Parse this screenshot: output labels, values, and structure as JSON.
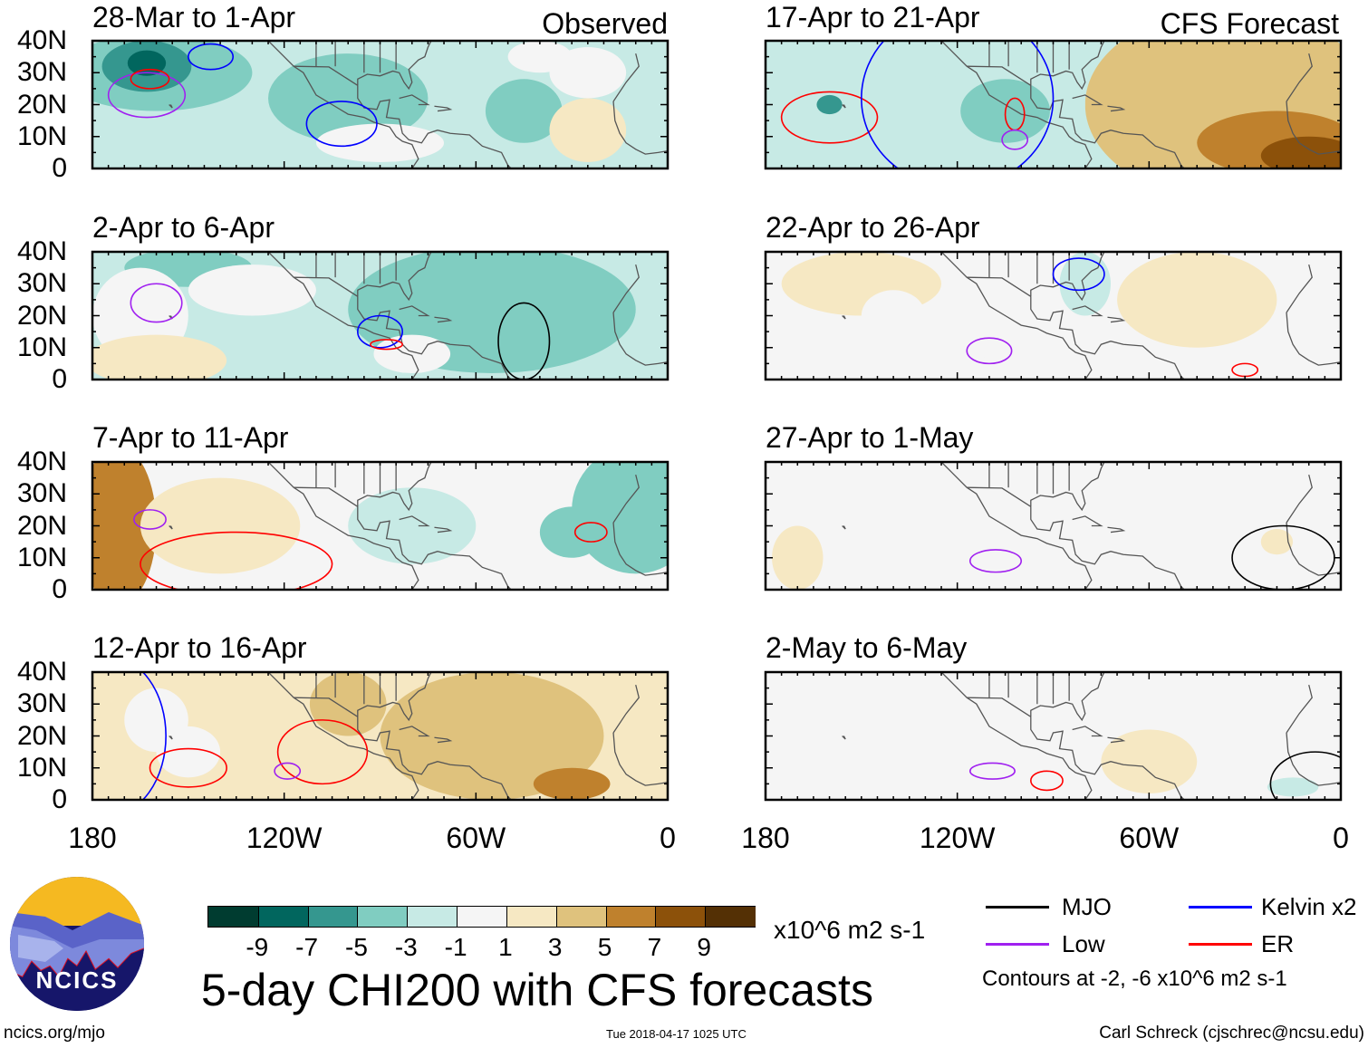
{
  "figure": {
    "title": "5-day CHI200 with CFS forecasts",
    "url": "ncics.org/mjo",
    "timestamp": "Tue 2018-04-17 1025 UTC",
    "author": "Carl Schreck (cjschrec@ncsu.edu)",
    "logo_text": "NCICS",
    "observed_label": "Observed",
    "forecast_label": "CFS Forecast"
  },
  "axes": {
    "y_ticks": [
      "40N",
      "30N",
      "20N",
      "10N",
      "0"
    ],
    "x_ticks": [
      "180",
      "120W",
      "60W",
      "0"
    ]
  },
  "colorbar": {
    "units": "x10^6 m2 s-1",
    "tick_labels": [
      "-9",
      "-7",
      "-5",
      "-3",
      "-1",
      "1",
      "3",
      "5",
      "7",
      "9"
    ],
    "colors": [
      "#003c30",
      "#01665e",
      "#35978f",
      "#80cdc1",
      "#c7eae5",
      "#f5f5f5",
      "#f6e8c3",
      "#dfc27d",
      "#bf812d",
      "#8c510a",
      "#543005"
    ]
  },
  "legend": {
    "items": [
      {
        "label": "MJO",
        "color": "#000000"
      },
      {
        "label": "Kelvin x2",
        "color": "#0000ff"
      },
      {
        "label": "Low",
        "color": "#a020f0"
      },
      {
        "label": "ER",
        "color": "#ff0000"
      }
    ],
    "note": "Contours at -2, -6 x10^6 m2 s-1"
  },
  "chart_data": {
    "type": "map",
    "extent": {
      "lon": [
        -180,
        0
      ],
      "lat": [
        0,
        40
      ]
    },
    "panels": [
      {
        "title": "28-Mar to 1-Apr",
        "background": -2,
        "fills": [
          [
            -160,
            30,
            30,
            12,
            -4
          ],
          [
            -163,
            32,
            14,
            8,
            -7
          ],
          [
            -163,
            33,
            6,
            4,
            -9
          ],
          [
            -100,
            22,
            25,
            14,
            -4
          ],
          [
            -90,
            8,
            20,
            6,
            -1
          ],
          [
            -45,
            18,
            12,
            10,
            -5
          ],
          [
            -25,
            12,
            12,
            10,
            2
          ],
          [
            -25,
            30,
            12,
            8,
            0
          ],
          [
            -40,
            35,
            10,
            5,
            0
          ]
        ],
        "contours": [
          [
            -163,
            23,
            12,
            7,
            "Low"
          ],
          [
            -162,
            28,
            6,
            3,
            "ER"
          ],
          [
            -143,
            35,
            7,
            4,
            "Kelvin x2"
          ],
          [
            -102,
            14,
            11,
            7,
            "Kelvin x2"
          ]
        ]
      },
      {
        "title": "17-Apr to 21-Apr",
        "background": -2,
        "fills": [
          [
            -35,
            20,
            45,
            30,
            3
          ],
          [
            -20,
            8,
            25,
            10,
            6
          ],
          [
            -10,
            4,
            15,
            6,
            8
          ],
          [
            -105,
            20,
            25,
            18,
            -3
          ],
          [
            -105,
            18,
            14,
            10,
            -5
          ],
          [
            -155,
            20,
            12,
            8,
            -3
          ],
          [
            -160,
            20,
            4,
            3,
            -6
          ]
        ],
        "contours": [
          [
            -160,
            16,
            15,
            8,
            "ER"
          ],
          [
            -102,
            17,
            3,
            5,
            "ER"
          ],
          [
            -102,
            9,
            4,
            3,
            "Low"
          ],
          [
            -120,
            22,
            30,
            28,
            "Kelvin x2"
          ]
        ]
      },
      {
        "title": "2-Apr to 6-Apr",
        "background": -3,
        "fills": [
          [
            -55,
            22,
            45,
            20,
            -5
          ],
          [
            -150,
            35,
            20,
            6,
            -5
          ],
          [
            -165,
            20,
            15,
            15,
            0
          ],
          [
            -160,
            6,
            22,
            8,
            2
          ],
          [
            -130,
            28,
            20,
            8,
            0
          ],
          [
            -80,
            8,
            12,
            6,
            -1
          ]
        ],
        "contours": [
          [
            -160,
            24,
            8,
            6,
            "Low"
          ],
          [
            -90,
            15,
            7,
            5,
            "Kelvin x2"
          ],
          [
            -88,
            11,
            5,
            1.5,
            "ER"
          ],
          [
            -45,
            12,
            8,
            12,
            "MJO"
          ]
        ]
      },
      {
        "title": "22-Apr to 26-Apr",
        "background": 0,
        "fills": [
          [
            -150,
            30,
            25,
            10,
            1
          ],
          [
            -45,
            25,
            25,
            15,
            1
          ],
          [
            -100,
            15,
            20,
            10,
            -1
          ],
          [
            -140,
            20,
            10,
            8,
            -1
          ],
          [
            -80,
            30,
            8,
            10,
            -2
          ]
        ],
        "contours": [
          [
            -110,
            9,
            7,
            4,
            "Low"
          ],
          [
            -30,
            3,
            4,
            2,
            "ER"
          ],
          [
            -82,
            33,
            8,
            5,
            "Kelvin x2"
          ]
        ]
      },
      {
        "title": "7-Apr to 11-Apr",
        "background": 0,
        "fills": [
          [
            -172,
            20,
            12,
            25,
            5
          ],
          [
            -140,
            20,
            25,
            15,
            1
          ],
          [
            -10,
            25,
            20,
            20,
            -4
          ],
          [
            -30,
            18,
            10,
            8,
            -5
          ],
          [
            -80,
            20,
            20,
            12,
            -2
          ],
          [
            -50,
            30,
            10,
            8,
            -1
          ]
        ],
        "contours": [
          [
            -162,
            22,
            5,
            3,
            "Low"
          ],
          [
            -24,
            18,
            5,
            3,
            "ER"
          ],
          [
            -135,
            8,
            30,
            10,
            "ER"
          ]
        ]
      },
      {
        "title": "27-Apr to 1-May",
        "background": 0,
        "fills": [
          [
            -40,
            30,
            20,
            10,
            -1
          ],
          [
            -110,
            10,
            18,
            8,
            -1
          ],
          [
            -155,
            15,
            12,
            8,
            -1
          ],
          [
            -20,
            15,
            5,
            4,
            1
          ],
          [
            -170,
            10,
            8,
            10,
            1
          ]
        ],
        "contours": [
          [
            -108,
            9,
            8,
            3.5,
            "Low"
          ],
          [
            -18,
            10,
            16,
            10,
            "MJO"
          ]
        ]
      },
      {
        "title": "12-Apr to 16-Apr",
        "background": 1,
        "fills": [
          [
            -55,
            20,
            35,
            20,
            3
          ],
          [
            -30,
            5,
            12,
            5,
            6
          ],
          [
            -160,
            25,
            10,
            10,
            0
          ],
          [
            -150,
            15,
            10,
            8,
            0
          ],
          [
            -100,
            30,
            12,
            10,
            3
          ]
        ],
        "contours": [
          [
            -108,
            15,
            14,
            10,
            "ER"
          ],
          [
            -119,
            9,
            4,
            2.5,
            "Low"
          ],
          [
            -175,
            20,
            18,
            25,
            "Kelvin x2"
          ],
          [
            -150,
            10,
            12,
            6,
            "ER"
          ]
        ]
      },
      {
        "title": "2-May to 6-May",
        "background": 0,
        "fills": [
          [
            -150,
            20,
            12,
            10,
            -1
          ],
          [
            -120,
            15,
            10,
            6,
            -1
          ],
          [
            -90,
            10,
            15,
            6,
            -1
          ],
          [
            -10,
            25,
            15,
            20,
            -1
          ],
          [
            -60,
            12,
            15,
            10,
            1
          ],
          [
            -15,
            4,
            8,
            3,
            -3
          ]
        ],
        "contours": [
          [
            -109,
            9,
            7,
            2.5,
            "Low"
          ],
          [
            -92,
            6,
            5,
            3,
            "ER"
          ],
          [
            -8,
            5,
            14,
            10,
            "MJO"
          ]
        ]
      }
    ]
  }
}
